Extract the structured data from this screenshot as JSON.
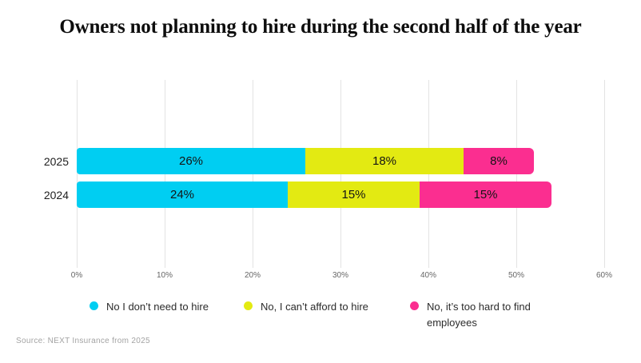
{
  "title": "Owners not planning to hire during the second half of the year",
  "source": "Source: NEXT Insurance from 2025",
  "chart_data": {
    "type": "bar",
    "stacked": true,
    "orientation": "horizontal",
    "title": "Owners not planning to hire during the second half of the year",
    "categories": [
      "2025",
      "2024"
    ],
    "series": [
      {
        "name": "No I don’t need to hire",
        "color": "#00CEF2",
        "values": [
          26,
          24
        ]
      },
      {
        "name": "No, I can’t afford to hire",
        "color": "#E3EA12",
        "values": [
          18,
          15
        ]
      },
      {
        "name": "No, it’s too hard to find employees",
        "color": "#FB2E90",
        "values": [
          8,
          15
        ]
      }
    ],
    "value_labels": [
      [
        "26%",
        "18%",
        "8%"
      ],
      [
        "24%",
        "15%",
        "15%"
      ]
    ],
    "xlim": [
      0,
      60
    ],
    "x_ticks": [
      "0%",
      "10%",
      "20%",
      "30%",
      "40%",
      "50%",
      "60%"
    ],
    "grid": "vertical",
    "legend_position": "bottom",
    "background": "#ffffff",
    "gridline_color": "#e3e3e3"
  }
}
